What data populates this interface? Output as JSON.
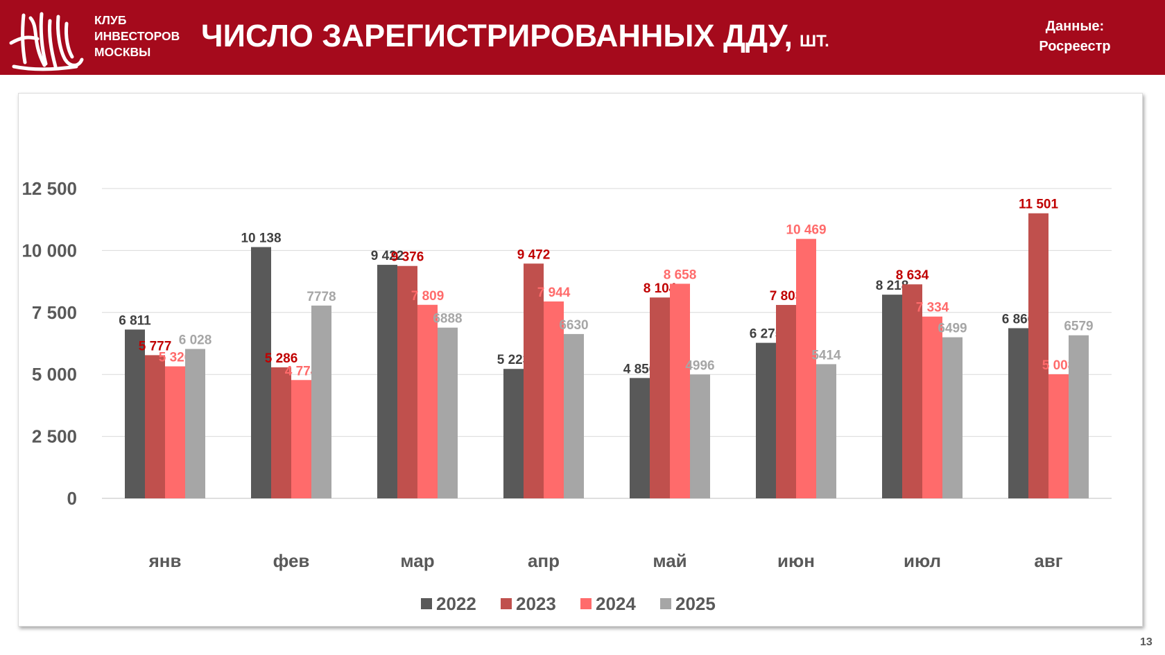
{
  "header": {
    "logo_lines": [
      "КЛУБ",
      "ИНВЕСТОРОВ",
      "МОСКВЫ"
    ],
    "title": "ЧИСЛО ЗАРЕГИСТРИРОВАННЫХ ДДУ,",
    "title_unit": "ШТ.",
    "source_line1": "Данные:",
    "source_line2": "Росреестр",
    "bg_color": "#a50a1c"
  },
  "page_number": "13",
  "chart_data": {
    "type": "bar",
    "title": "ЧИСЛО ЗАРЕГИСТРИРОВАННЫХ ДДУ, ШТ.",
    "xlabel": "",
    "ylabel": "",
    "ylim": [
      0,
      12500
    ],
    "yticks": [
      0,
      2500,
      5000,
      7500,
      10000,
      12500
    ],
    "ytick_labels": [
      "0",
      "2 500",
      "5 000",
      "7 500",
      "10 000",
      "12 500"
    ],
    "grid": true,
    "legend_position": "bottom",
    "categories": [
      "янв",
      "фев",
      "мар",
      "апр",
      "май",
      "июн",
      "июл",
      "авг"
    ],
    "series": [
      {
        "name": "2022",
        "color": "#595959",
        "label_color": "#404040",
        "values": [
          6811,
          10138,
          9422,
          5223,
          4856,
          6275,
          8218,
          6866
        ],
        "labels": [
          "6 811",
          "10 138",
          "9 422",
          "5 223",
          "4 856",
          "6 275",
          "8 218",
          "6 866"
        ]
      },
      {
        "name": "2023",
        "color": "#c0504d",
        "label_color": "#c00000",
        "values": [
          5777,
          5286,
          9376,
          9472,
          8104,
          7803,
          8634,
          11501
        ],
        "labels": [
          "5 777",
          "5 286",
          "9 376",
          "9 472",
          "8 104",
          "7 803",
          "8 634",
          "11 501"
        ]
      },
      {
        "name": "2024",
        "color": "#ff6b6b",
        "label_color": "#ff6b6b",
        "values": [
          5326,
          4774,
          7809,
          7944,
          8658,
          10469,
          7334,
          5008
        ],
        "labels": [
          "5 326",
          "4 774",
          "7 809",
          "7 944",
          "8 658",
          "10 469",
          "7 334",
          "5 008"
        ]
      },
      {
        "name": "2025",
        "color": "#a6a6a6",
        "label_color": "#a6a6a6",
        "values": [
          6028,
          7778,
          6888,
          6630,
          4996,
          5414,
          6499,
          6579
        ],
        "labels": [
          "6 028",
          "7778",
          "6888",
          "6630",
          "4996",
          "5414",
          "6499",
          "6579"
        ]
      }
    ]
  }
}
